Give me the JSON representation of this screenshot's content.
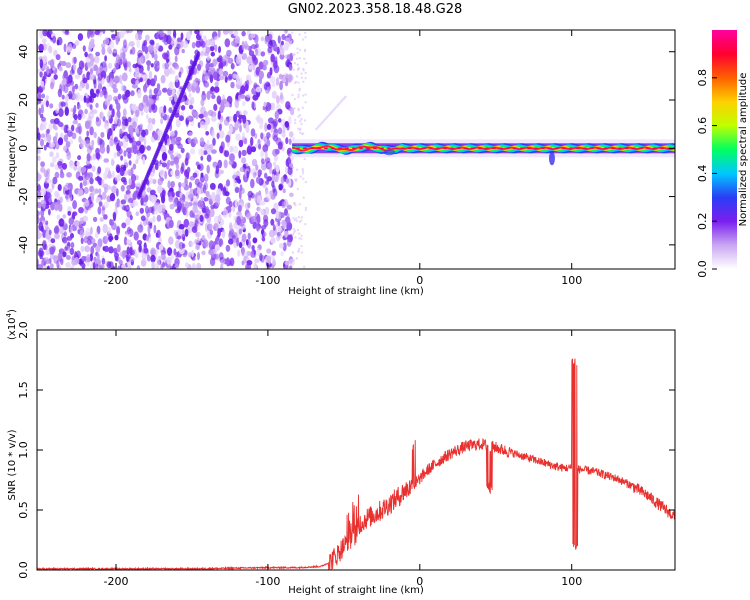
{
  "title": "GN02.2023.358.18.48.G28",
  "chart_data": [
    {
      "type": "heatmap",
      "xlabel": "Height of straight line (km)",
      "ylabel": "Frequency (Hz)",
      "xlim": [
        -252,
        168
      ],
      "ylim": [
        -50,
        49
      ],
      "x_ticks": [
        -200,
        -100,
        0,
        100
      ],
      "x_tick_labels": [
        "-200",
        "-100",
        "0",
        "100"
      ],
      "y_ticks": [
        -40,
        -20,
        0,
        20,
        40
      ],
      "y_tick_labels": [
        "-40",
        "-20",
        "0",
        "20",
        "40"
      ],
      "noise_region_x": [
        -252,
        -84
      ],
      "ridge_x": [
        -84,
        168
      ],
      "ridge_frequency": 0,
      "colorbar": {
        "label": "Normalized spectral amplitude",
        "range": [
          0,
          1
        ],
        "ticks": [
          0.0,
          0.2,
          0.4,
          0.6,
          0.8
        ],
        "tick_labels": [
          "0.0",
          "0.2",
          "0.4",
          "0.6",
          "0.8"
        ],
        "colors": [
          "#ffffff",
          "#c9a6f2",
          "#7a1ff0",
          "#2a3df5",
          "#00c8ff",
          "#00ff60",
          "#bfff00",
          "#ffd000",
          "#ff6000",
          "#ff0030",
          "#ff00a0"
        ]
      },
      "grid": false
    },
    {
      "type": "line",
      "xlabel": "Height of straight line (km)",
      "ylabel": "SNR (10 * v/v)",
      "y_scale_note": "(x10",
      "y_scale_exp": "4",
      "y_scale_close": ")",
      "xlim": [
        -252,
        168
      ],
      "ylim": [
        0,
        2.0
      ],
      "x_ticks": [
        -200,
        -100,
        0,
        100
      ],
      "x_tick_labels": [
        "-200",
        "-100",
        "0",
        "100"
      ],
      "y_ticks": [
        0.0,
        0.5,
        1.0,
        1.5,
        2.0
      ],
      "y_tick_labels": [
        "0.0",
        "0.5",
        "1.0",
        "1.5",
        "2.0"
      ],
      "series": [
        {
          "color": "#e8302e",
          "x": [
            -252,
            -200,
            -150,
            -100,
            -80,
            -65,
            -60,
            -55,
            -50,
            -45,
            -42,
            -40,
            -35,
            -30,
            -25,
            -20,
            -15,
            -10,
            -5,
            0,
            5,
            10,
            15,
            20,
            25,
            30,
            35,
            40,
            45,
            50,
            55,
            60,
            65,
            70,
            75,
            80,
            85,
            90,
            95,
            100,
            102,
            105,
            110,
            115,
            120,
            125,
            130,
            135,
            140,
            145,
            150,
            155,
            160,
            165,
            168
          ],
          "y": [
            0.01,
            0.01,
            0.01,
            0.02,
            0.02,
            0.03,
            0.06,
            0.12,
            0.2,
            0.26,
            0.3,
            0.38,
            0.43,
            0.46,
            0.5,
            0.55,
            0.6,
            0.66,
            0.7,
            0.76,
            0.83,
            0.88,
            0.93,
            0.97,
            1.0,
            1.03,
            1.04,
            1.05,
            1.04,
            1.02,
            1.0,
            0.98,
            0.96,
            0.94,
            0.92,
            0.9,
            0.88,
            0.86,
            0.85,
            0.85,
            0.84,
            0.84,
            0.83,
            0.82,
            0.8,
            0.78,
            0.76,
            0.73,
            0.7,
            0.66,
            0.62,
            0.57,
            0.52,
            0.47,
            0.44
          ]
        }
      ],
      "grid": false
    }
  ]
}
